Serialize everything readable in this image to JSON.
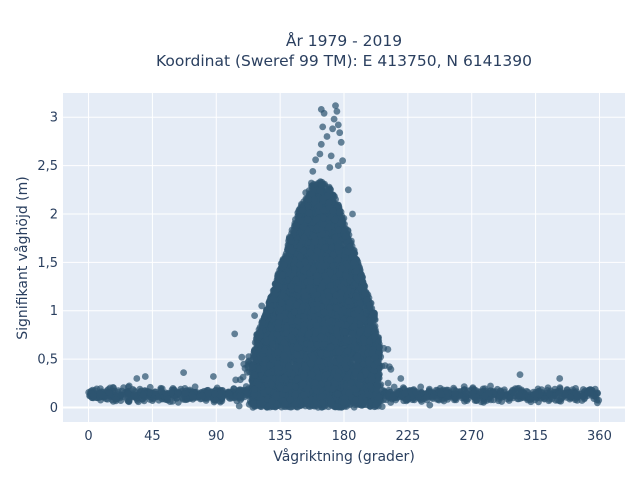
{
  "chart_data": {
    "type": "scatter",
    "title": [
      "År 1979 - 2019",
      "Koordinat (Sweref 99 TM): E 413750, N 6141390"
    ],
    "xlabel": "Vågriktning (grader)",
    "ylabel": "Signifikant våghöjd (m)",
    "xlim": [
      -18,
      378
    ],
    "ylim": [
      -0.15,
      3.25
    ],
    "xticks": [
      0,
      45,
      90,
      135,
      180,
      225,
      270,
      315,
      360
    ],
    "xtick_labels": [
      "0",
      "45",
      "90",
      "135",
      "180",
      "225",
      "270",
      "315",
      "360"
    ],
    "yticks": [
      0,
      0.5,
      1,
      1.5,
      2,
      2.5,
      3
    ],
    "ytick_labels": [
      "0",
      "0,5",
      "1",
      "1,5",
      "2",
      "2,5",
      "3"
    ],
    "grid": true,
    "marker_color": "#2e5570",
    "plot_background": "#e5ecf6",
    "x_range": [
      0,
      360
    ],
    "outliers": [
      {
        "x": 157,
        "y": 2.32
      },
      {
        "x": 158,
        "y": 2.44
      },
      {
        "x": 160,
        "y": 2.56
      },
      {
        "x": 163,
        "y": 2.62
      },
      {
        "x": 164,
        "y": 2.72
      },
      {
        "x": 165,
        "y": 2.9
      },
      {
        "x": 164,
        "y": 3.08
      },
      {
        "x": 166,
        "y": 3.04
      },
      {
        "x": 168,
        "y": 2.8
      },
      {
        "x": 171,
        "y": 2.6
      },
      {
        "x": 172,
        "y": 2.88
      },
      {
        "x": 173,
        "y": 2.98
      },
      {
        "x": 174,
        "y": 3.12
      },
      {
        "x": 175,
        "y": 3.06
      },
      {
        "x": 176,
        "y": 2.92
      },
      {
        "x": 177,
        "y": 2.84
      },
      {
        "x": 178,
        "y": 2.74
      },
      {
        "x": 179,
        "y": 2.55
      },
      {
        "x": 176,
        "y": 2.5
      },
      {
        "x": 170,
        "y": 2.48
      },
      {
        "x": 150,
        "y": 2.1
      },
      {
        "x": 153,
        "y": 2.22
      },
      {
        "x": 155,
        "y": 2.15
      },
      {
        "x": 186,
        "y": 2.0
      },
      {
        "x": 183,
        "y": 2.25
      },
      {
        "x": 103,
        "y": 0.76
      },
      {
        "x": 108,
        "y": 0.52
      },
      {
        "x": 100,
        "y": 0.44
      },
      {
        "x": 34,
        "y": 0.3
      },
      {
        "x": 40,
        "y": 0.32
      },
      {
        "x": 67,
        "y": 0.36
      },
      {
        "x": 304,
        "y": 0.34
      },
      {
        "x": 332,
        "y": 0.3
      },
      {
        "x": 88,
        "y": 0.32
      },
      {
        "x": 117,
        "y": 0.95
      },
      {
        "x": 122,
        "y": 1.05
      },
      {
        "x": 199,
        "y": 0.9
      },
      {
        "x": 205,
        "y": 0.62
      },
      {
        "x": 212,
        "y": 0.42
      },
      {
        "x": 220,
        "y": 0.3
      }
    ]
  }
}
